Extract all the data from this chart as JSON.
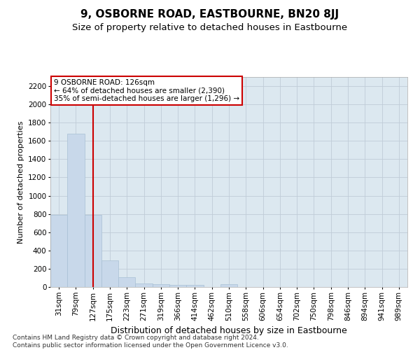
{
  "title": "9, OSBORNE ROAD, EASTBOURNE, BN20 8JJ",
  "subtitle": "Size of property relative to detached houses in Eastbourne",
  "xlabel": "Distribution of detached houses by size in Eastbourne",
  "ylabel": "Number of detached properties",
  "categories": [
    "31sqm",
    "79sqm",
    "127sqm",
    "175sqm",
    "223sqm",
    "271sqm",
    "319sqm",
    "366sqm",
    "414sqm",
    "462sqm",
    "510sqm",
    "558sqm",
    "606sqm",
    "654sqm",
    "702sqm",
    "750sqm",
    "798sqm",
    "846sqm",
    "894sqm",
    "941sqm",
    "989sqm"
  ],
  "values": [
    790,
    1680,
    790,
    290,
    110,
    40,
    30,
    20,
    20,
    0,
    30,
    0,
    0,
    0,
    0,
    0,
    0,
    0,
    0,
    0,
    0
  ],
  "bar_color": "#c8d8ea",
  "bar_edgecolor": "#a8c0d4",
  "vline_x_index": 2,
  "vline_color": "#cc0000",
  "annotation_text": "9 OSBORNE ROAD: 126sqm\n← 64% of detached houses are smaller (2,390)\n35% of semi-detached houses are larger (1,296) →",
  "annotation_box_facecolor": "#ffffff",
  "annotation_box_edgecolor": "#cc0000",
  "ylim": [
    0,
    2300
  ],
  "yticks": [
    0,
    200,
    400,
    600,
    800,
    1000,
    1200,
    1400,
    1600,
    1800,
    2000,
    2200
  ],
  "footer_text": "Contains HM Land Registry data © Crown copyright and database right 2024.\nContains public sector information licensed under the Open Government Licence v3.0.",
  "bg_color": "#ffffff",
  "plot_bg_color": "#dce8f0",
  "grid_color": "#c0ccd8",
  "title_fontsize": 11,
  "subtitle_fontsize": 9.5,
  "xlabel_fontsize": 9,
  "ylabel_fontsize": 8,
  "tick_fontsize": 7.5,
  "annot_fontsize": 7.5,
  "footer_fontsize": 6.5
}
